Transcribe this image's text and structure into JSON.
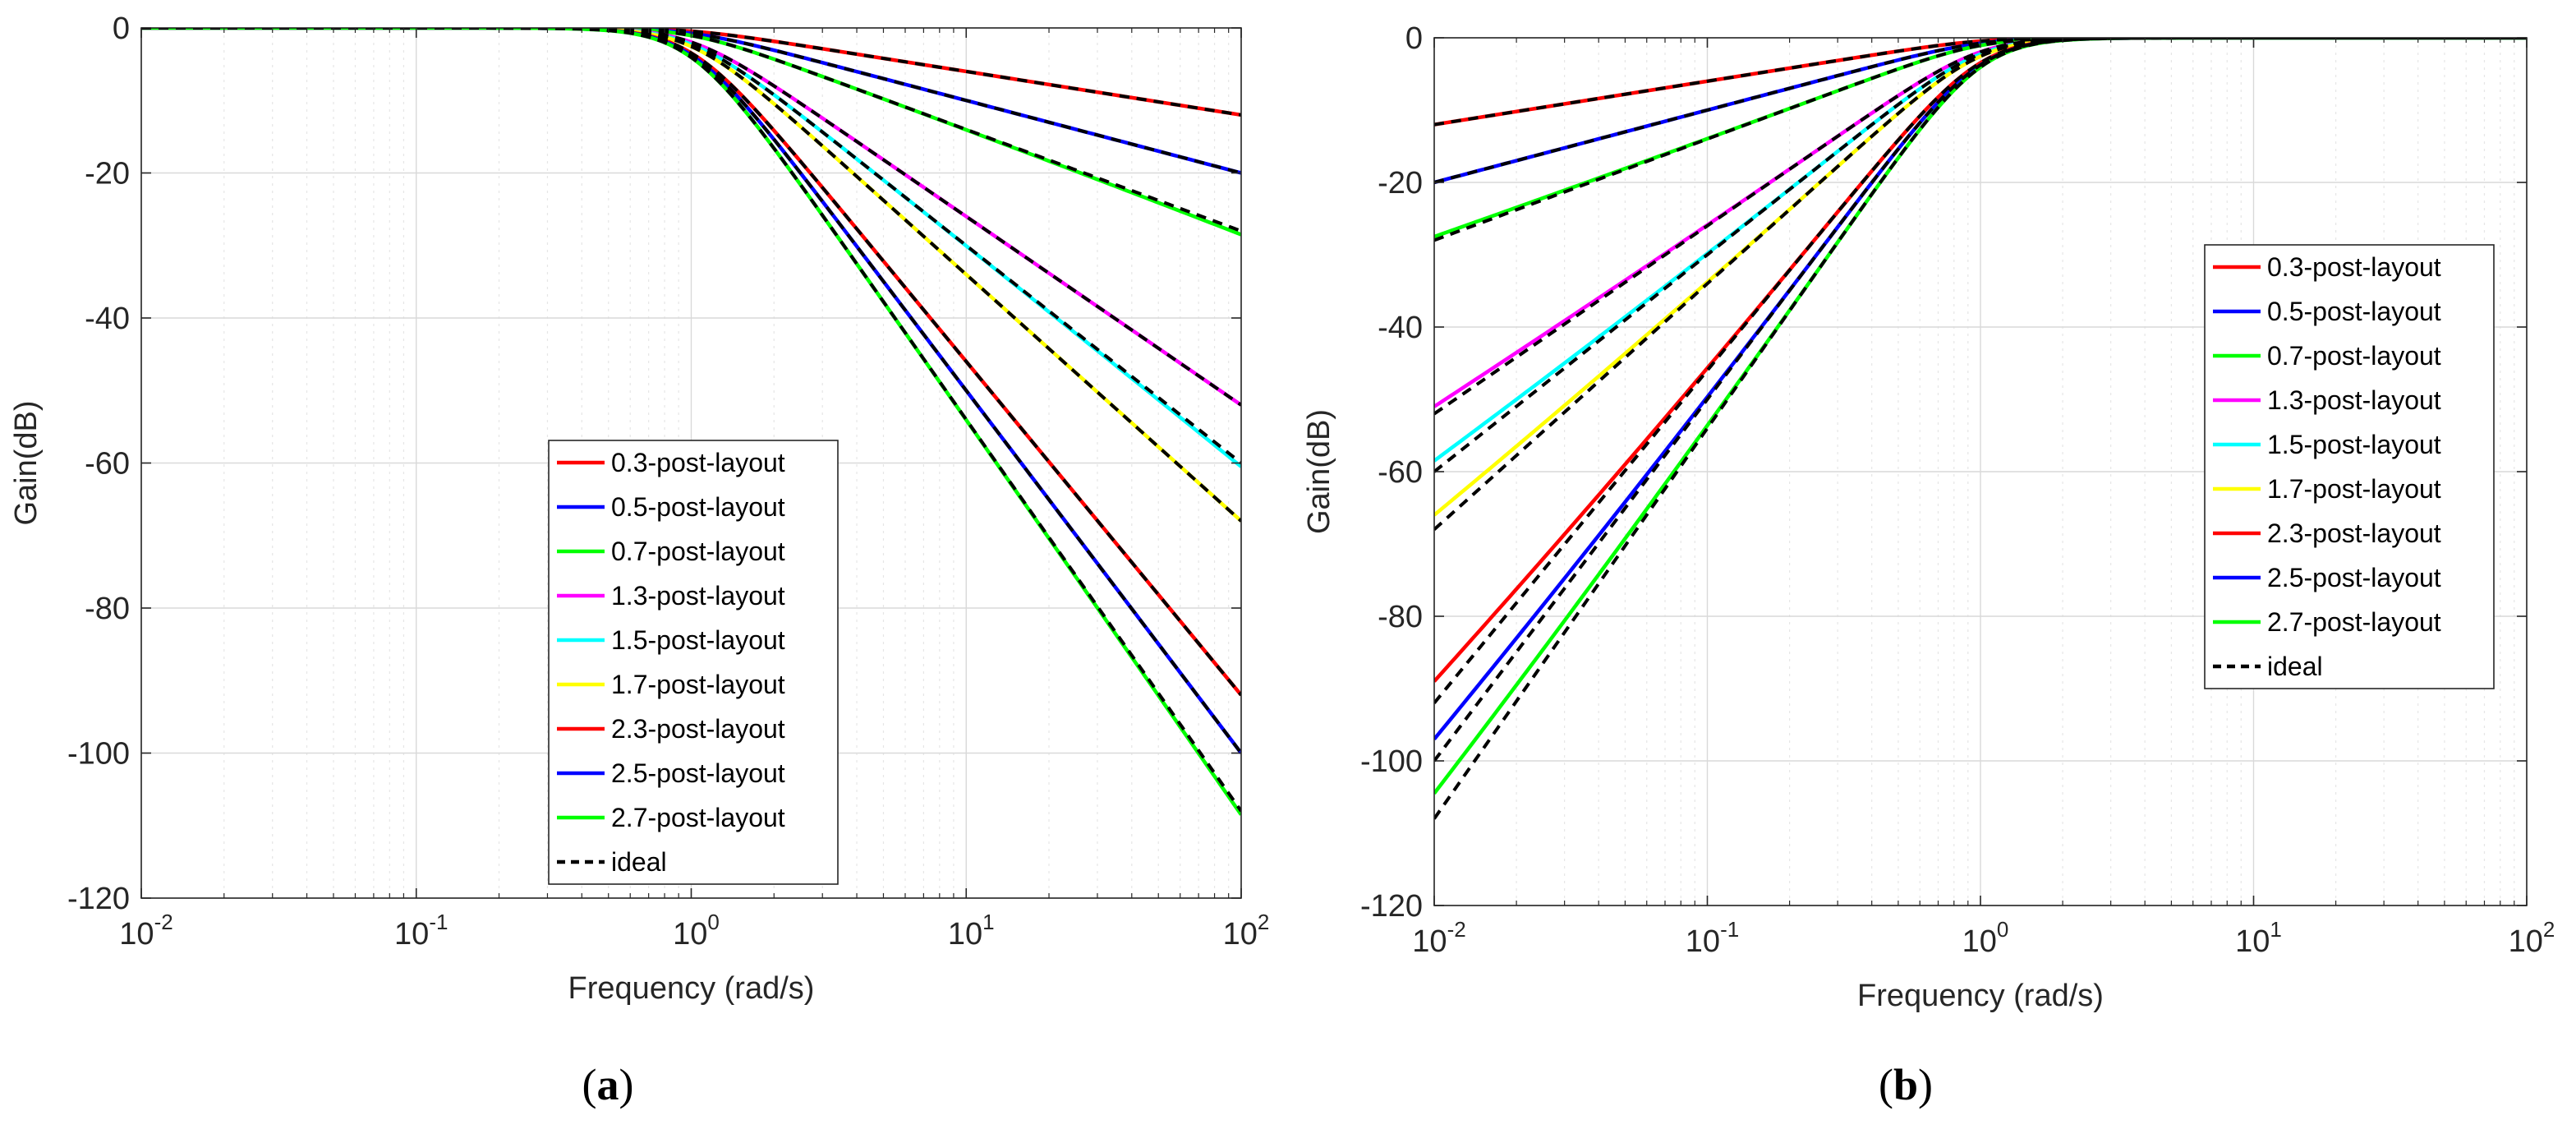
{
  "captions": [
    "(a)",
    "(b)"
  ],
  "chart_data": [
    {
      "type": "line",
      "panel": "a",
      "title": "",
      "xlabel": "Frequency (rad/s)",
      "ylabel": "Gain(dB)",
      "xscale": "log",
      "xlim": [
        0.01,
        100
      ],
      "ylim": [
        -120,
        0
      ],
      "xticks": [
        0.01,
        0.1,
        1,
        10,
        100
      ],
      "xtick_labels": [
        {
          "base": "10",
          "exp": "-2"
        },
        {
          "base": "10",
          "exp": "-1"
        },
        {
          "base": "10",
          "exp": "0"
        },
        {
          "base": "10",
          "exp": "1"
        },
        {
          "base": "10",
          "exp": "2"
        }
      ],
      "yticks": [
        0,
        -20,
        -40,
        -60,
        -80,
        -100,
        -120
      ],
      "ytick_labels": [
        "0",
        "-20",
        "-40",
        "-60",
        "-80",
        "-100",
        "-120"
      ],
      "grid": true,
      "filter": "lowpass",
      "legend_position": "bottom-center",
      "series": [
        {
          "name": "0.3-post-layout",
          "color": "#ff0000",
          "order": 0.3,
          "end_gain": -12
        },
        {
          "name": "0.5-post-layout",
          "color": "#0000ff",
          "order": 0.5,
          "end_gain": -20
        },
        {
          "name": "0.7-post-layout",
          "color": "#00ff00",
          "order": 0.7,
          "end_gain": -28.5
        },
        {
          "name": "1.3-post-layout",
          "color": "#ff00ff",
          "order": 1.3,
          "end_gain": -52
        },
        {
          "name": "1.5-post-layout",
          "color": "#00ffff",
          "order": 1.5,
          "end_gain": -60.5
        },
        {
          "name": "1.7-post-layout",
          "color": "#ffff00",
          "order": 1.7,
          "end_gain": -68
        },
        {
          "name": "2.3-post-layout",
          "color": "#ff0000",
          "order": 2.3,
          "end_gain": -92
        },
        {
          "name": "2.5-post-layout",
          "color": "#0000ff",
          "order": 2.5,
          "end_gain": -100
        },
        {
          "name": "2.7-post-layout",
          "color": "#00ff00",
          "order": 2.7,
          "end_gain": -108.5
        },
        {
          "name": "ideal",
          "color": "#000000",
          "style": "dashed",
          "orders": [
            0.3,
            0.5,
            0.7,
            1.3,
            1.5,
            1.7,
            2.3,
            2.5,
            2.7
          ]
        }
      ]
    },
    {
      "type": "line",
      "panel": "b",
      "title": "",
      "xlabel": "Frequency (rad/s)",
      "ylabel": "Gain(dB)",
      "xscale": "log",
      "xlim": [
        0.01,
        100
      ],
      "ylim": [
        -120,
        0
      ],
      "xticks": [
        0.01,
        0.1,
        1,
        10,
        100
      ],
      "xtick_labels": [
        {
          "base": "10",
          "exp": "-2"
        },
        {
          "base": "10",
          "exp": "-1"
        },
        {
          "base": "10",
          "exp": "0"
        },
        {
          "base": "10",
          "exp": "1"
        },
        {
          "base": "10",
          "exp": "2"
        }
      ],
      "yticks": [
        0,
        -20,
        -40,
        -60,
        -80,
        -100,
        -120
      ],
      "ytick_labels": [
        "0",
        "-20",
        "-40",
        "-60",
        "-80",
        "-100",
        "-120"
      ],
      "grid": true,
      "filter": "highpass",
      "legend_position": "top-right",
      "series": [
        {
          "name": "0.3-post-layout",
          "color": "#ff0000",
          "order": 0.3,
          "start_gain": -12
        },
        {
          "name": "0.5-post-layout",
          "color": "#0000ff",
          "order": 0.5,
          "start_gain": -20
        },
        {
          "name": "0.7-post-layout",
          "color": "#00ff00",
          "order": 0.7,
          "start_gain": -27.5
        },
        {
          "name": "1.3-post-layout",
          "color": "#ff00ff",
          "order": 1.3,
          "start_gain": -51
        },
        {
          "name": "1.5-post-layout",
          "color": "#00ffff",
          "order": 1.5,
          "start_gain": -58.5
        },
        {
          "name": "1.7-post-layout",
          "color": "#ffff00",
          "order": 1.7,
          "start_gain": -66
        },
        {
          "name": "2.3-post-layout",
          "color": "#ff0000",
          "order": 2.3,
          "start_gain": -89
        },
        {
          "name": "2.5-post-layout",
          "color": "#0000ff",
          "order": 2.5,
          "start_gain": -97
        },
        {
          "name": "2.7-post-layout",
          "color": "#00ff00",
          "order": 2.7,
          "start_gain": -104.5
        },
        {
          "name": "ideal",
          "color": "#000000",
          "style": "dashed",
          "orders": [
            0.3,
            0.5,
            0.7,
            1.3,
            1.5,
            1.7,
            2.3,
            2.5,
            2.7
          ]
        }
      ]
    }
  ]
}
